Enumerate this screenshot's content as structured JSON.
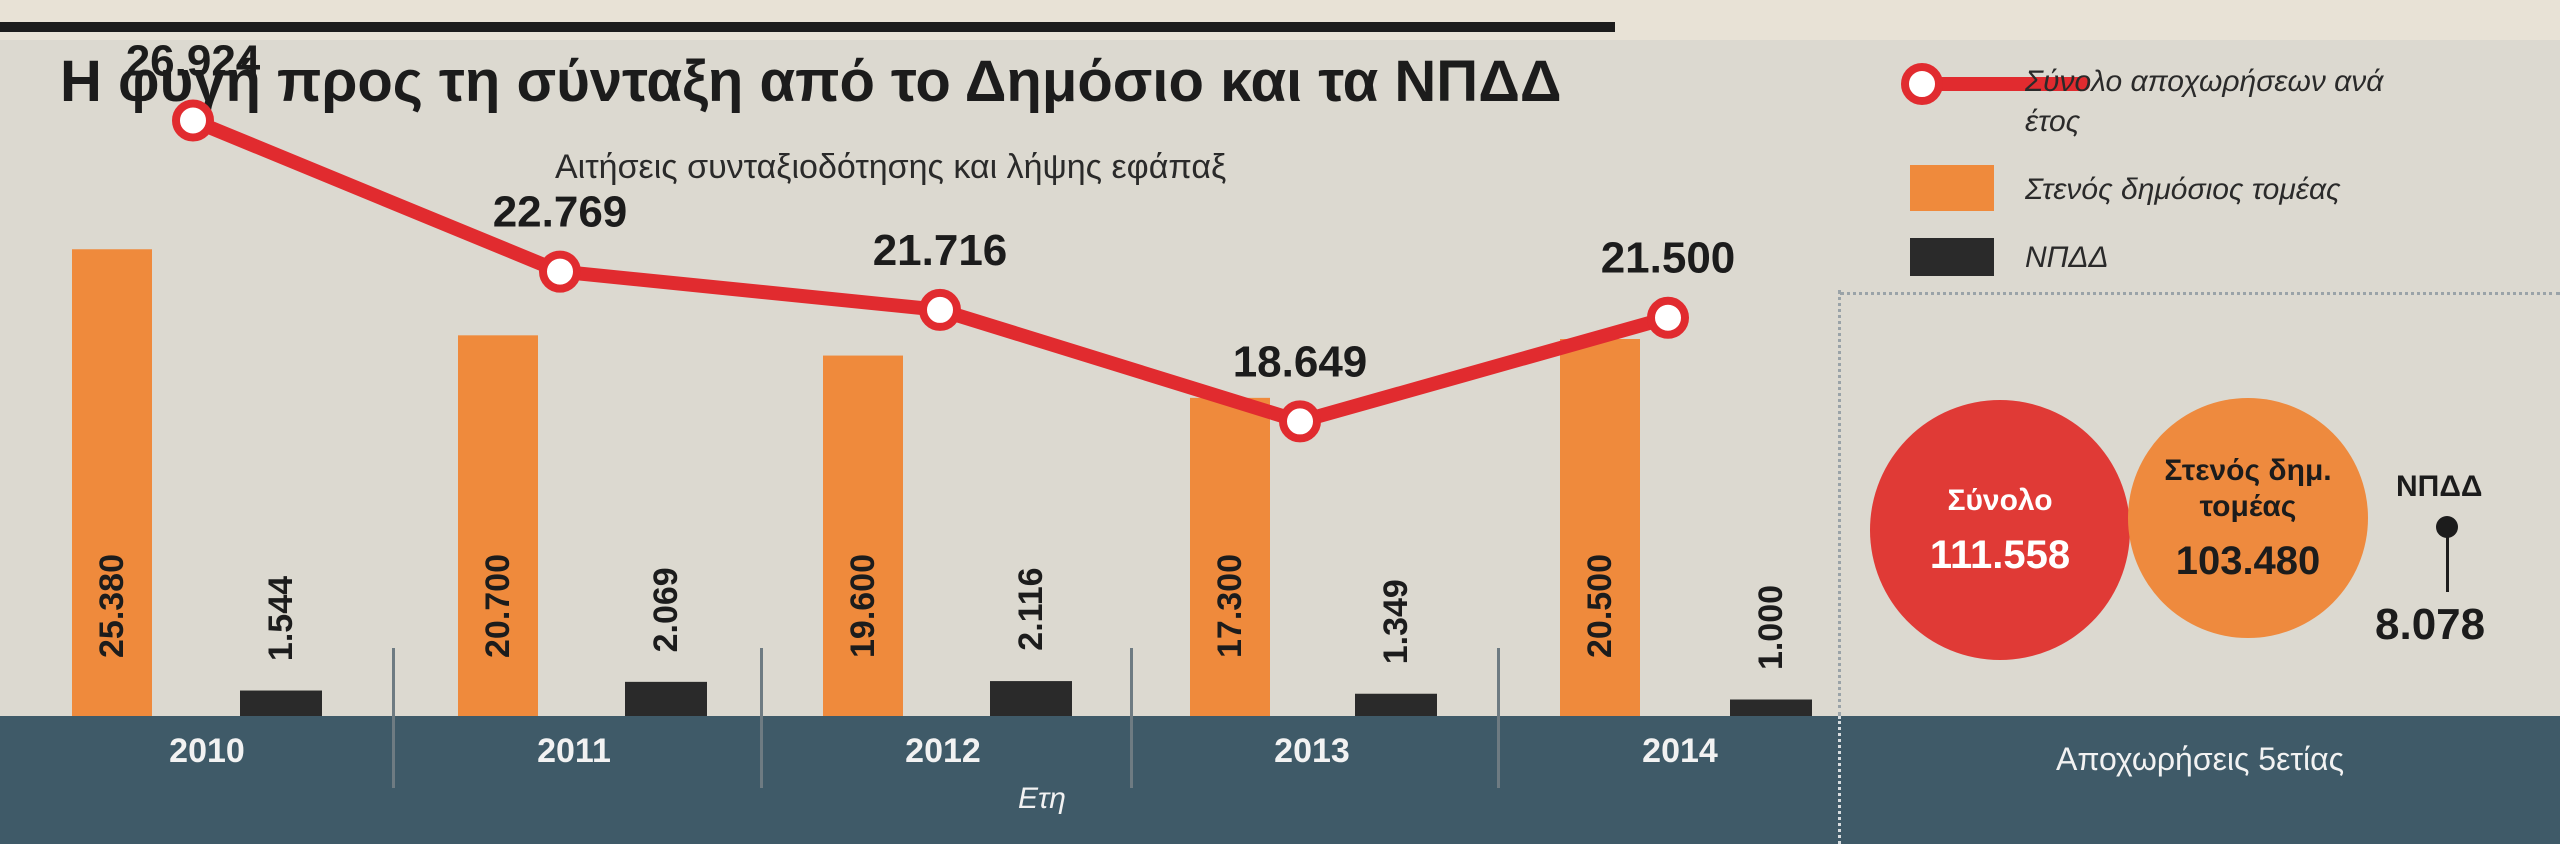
{
  "title": "Η φυγή προς τη σύνταξη από το Δημόσιο και τα ΝΠΔΔ",
  "source": "Ετη",
  "colors": {
    "total_line": "#e12b2f",
    "public_sector": "#ef8a3c",
    "npdd": "#2a2a2a",
    "band": "#3f5a68",
    "circle_total": "#e03a36",
    "circle_public": "#ee8a3e"
  },
  "legend": {
    "total": "Σύνολο αποχωρήσεων ανά έτος",
    "public_sector": "Στενός δημόσιος τομέας",
    "npdd": "ΝΠΔΔ"
  },
  "chart_data": {
    "type": "bar",
    "title": "Η φυγή προς τη σύνταξη από το Δημόσιο και τα ΝΠΔΔ",
    "subtitle": "Αιτήσεις συνταξιοδότησης και λήψης εφάπαξ",
    "xlabel": "Ετη",
    "ylabel": "",
    "ylim": [
      0,
      30000
    ],
    "categories": [
      "2010",
      "2011",
      "2012",
      "2013",
      "2014"
    ],
    "series": [
      {
        "name": "Στενός δημόσιος τομέας",
        "type": "bar",
        "values": [
          25380,
          20700,
          19600,
          17300,
          20500
        ],
        "labels": [
          "25.380",
          "20.700",
          "19.600",
          "17.300",
          "20.500"
        ]
      },
      {
        "name": "ΝΠΔΔ",
        "type": "bar",
        "values": [
          1544,
          2069,
          2116,
          1349,
          1000
        ],
        "labels": [
          "1.544",
          "2.069",
          "2.116",
          "1.349",
          "1.000"
        ]
      },
      {
        "name": "Σύνολο αποχωρήσεων ανά έτος",
        "type": "line",
        "values": [
          26924,
          22769,
          21716,
          18649,
          21500
        ],
        "labels": [
          "26.924",
          "22.769",
          "21.716",
          "18.649",
          "21.500"
        ]
      }
    ]
  },
  "summary": {
    "footer": "Αποχωρήσεις 5ετίας",
    "total_label": "Σύνολο",
    "total_value": "111.558",
    "public_label": "Στενός δημ. τομέας",
    "public_value": "103.480",
    "npdd_label": "ΝΠΔΔ",
    "npdd_value": "8.078"
  }
}
